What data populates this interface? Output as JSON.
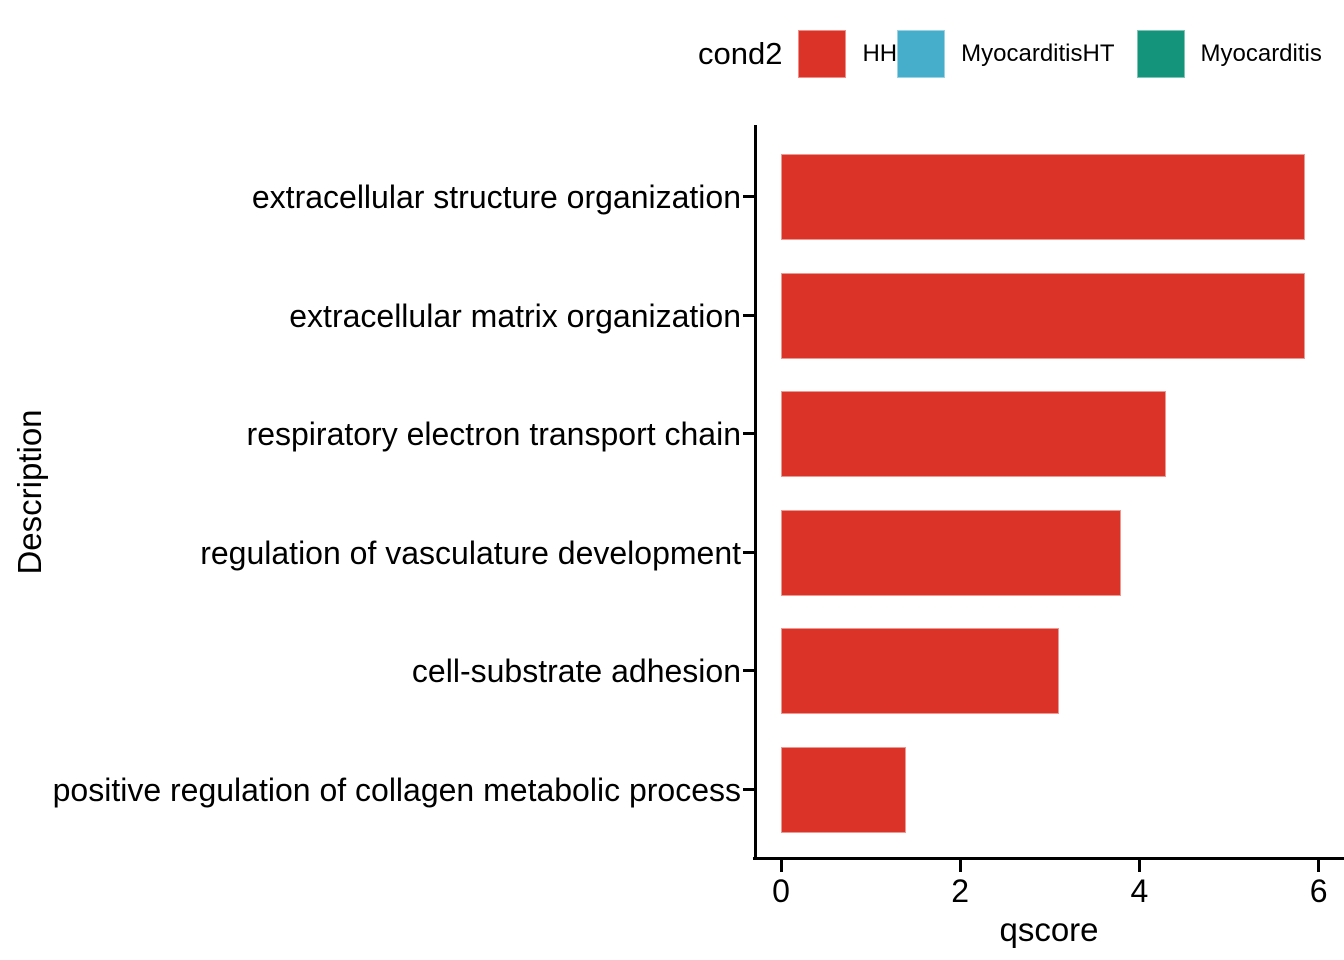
{
  "chart_data": {
    "type": "bar",
    "orientation": "horizontal",
    "title": "",
    "xlabel": "qscore",
    "ylabel": "Description",
    "categories": [
      "extracellular structure organization",
      "extracellular matrix organization",
      "respiratory electron transport chain",
      "regulation of vasculature development",
      "cell-substrate adhesion",
      "positive regulation of collagen metabolic process"
    ],
    "series": [
      {
        "name": "HH",
        "color": "#DB3327",
        "values": [
          5.85,
          5.85,
          4.3,
          3.8,
          3.1,
          1.4
        ]
      }
    ],
    "xlim": [
      0,
      6
    ],
    "x_ticks": [
      "0",
      "2",
      "4",
      "6"
    ],
    "x_tick_values": [
      0,
      2,
      4,
      6
    ],
    "grid": false,
    "legend": {
      "title": "cond2",
      "position": "top",
      "entries": [
        {
          "label": "HH",
          "color": "#DB3327"
        },
        {
          "label": "MyocarditisHT",
          "color": "#46AECB"
        },
        {
          "label": "Myocarditis",
          "color": "#13947B"
        }
      ]
    }
  }
}
